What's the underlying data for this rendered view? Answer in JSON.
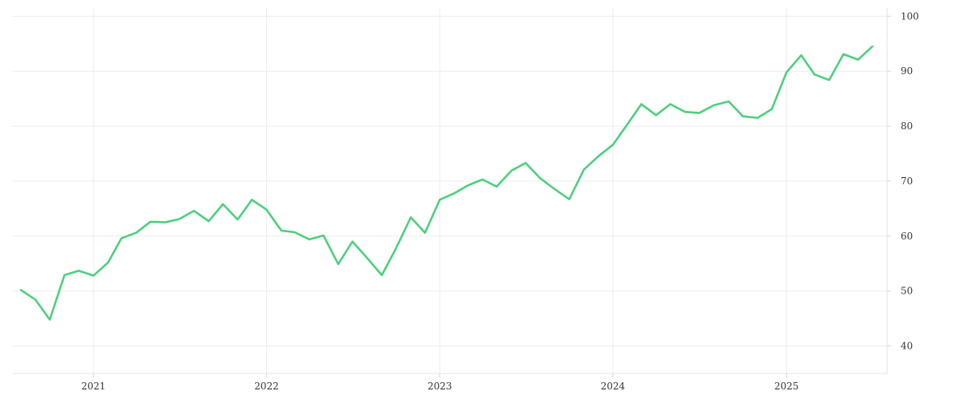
{
  "chart_data": {
    "type": "line",
    "title": "",
    "xlabel": "",
    "ylabel": "",
    "x_ticks": [
      "2021",
      "2022",
      "2023",
      "2024",
      "2025"
    ],
    "y_ticks": [
      40,
      50,
      60,
      70,
      80,
      90,
      100
    ],
    "ylim": [
      35,
      101.5
    ],
    "xlim": [
      "2020-07-15",
      "2025-08-01"
    ],
    "grid": true,
    "y_axis_position": "right",
    "series": [
      {
        "color": "#4cd07d",
        "x": [
          "2020-08-01",
          "2020-09-01",
          "2020-10-01",
          "2020-11-01",
          "2020-12-01",
          "2021-01-01",
          "2021-02-01",
          "2021-03-01",
          "2021-04-01",
          "2021-05-01",
          "2021-06-01",
          "2021-07-01",
          "2021-08-01",
          "2021-09-01",
          "2021-10-01",
          "2021-11-01",
          "2021-12-01",
          "2022-01-01",
          "2022-02-01",
          "2022-03-01",
          "2022-04-01",
          "2022-05-01",
          "2022-06-01",
          "2022-07-01",
          "2022-08-01",
          "2022-09-01",
          "2022-10-01",
          "2022-11-01",
          "2022-12-01",
          "2023-01-01",
          "2023-02-01",
          "2023-03-01",
          "2023-04-01",
          "2023-05-01",
          "2023-06-01",
          "2023-07-01",
          "2023-08-01",
          "2023-09-01",
          "2023-10-01",
          "2023-11-01",
          "2023-12-01",
          "2024-01-01",
          "2024-02-01",
          "2024-03-01",
          "2024-04-01",
          "2024-05-01",
          "2024-06-01",
          "2024-07-01",
          "2024-08-01",
          "2024-09-01",
          "2024-10-01",
          "2024-11-01",
          "2024-12-01",
          "2025-01-01",
          "2025-02-01",
          "2025-03-01",
          "2025-04-01",
          "2025-05-01",
          "2025-06-01",
          "2025-07-01"
        ],
        "values": [
          50.2,
          48.4,
          44.8,
          52.9,
          53.7,
          52.8,
          55.2,
          59.6,
          60.6,
          62.6,
          62.5,
          63.1,
          64.6,
          62.7,
          65.8,
          63.0,
          66.6,
          64.8,
          61.0,
          60.7,
          59.4,
          60.1,
          54.9,
          59.0,
          56.0,
          52.9,
          57.8,
          63.4,
          60.6,
          66.6,
          67.8,
          69.2,
          70.3,
          69.0,
          71.9,
          73.3,
          70.5,
          68.5,
          66.7,
          72.1,
          74.5,
          76.6,
          80.4,
          84.0,
          82.0,
          84.0,
          82.6,
          82.4,
          83.8,
          84.5,
          81.8,
          81.5,
          83.1,
          89.8,
          92.9,
          89.4,
          88.4,
          93.1,
          92.1,
          94.5
        ]
      }
    ]
  }
}
